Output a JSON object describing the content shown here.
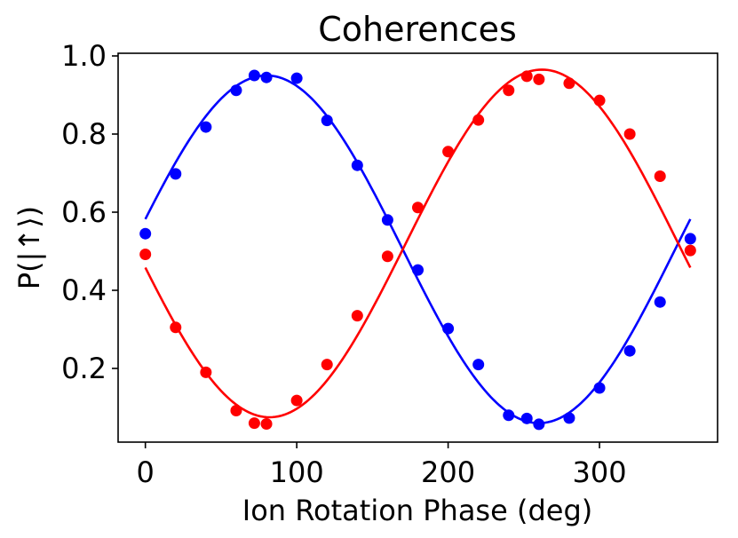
{
  "chart_data": {
    "type": "scatter",
    "title": "Coherences",
    "xlabel": "Ion Rotation Phase (deg)",
    "ylabel": "P(|↑⟩)",
    "xlim": [
      -18,
      378
    ],
    "ylim": [
      0.0,
      1.0
    ],
    "x_ticks": [
      0,
      100,
      200,
      300
    ],
    "x_tick_labels": [
      "0",
      "100",
      "200",
      "300"
    ],
    "y_ticks": [
      0.2,
      0.4,
      0.6,
      0.8,
      1.0
    ],
    "y_tick_labels": [
      "0.2",
      "0.4",
      "0.6",
      "0.8",
      "1.0"
    ],
    "grid": false,
    "series": [
      {
        "name": "blue data",
        "color": "#0000ff",
        "x": [
          0,
          20,
          40,
          60,
          72,
          80,
          100,
          120,
          140,
          160,
          180,
          200,
          220,
          240,
          252,
          260,
          280,
          300,
          320,
          340,
          360
        ],
        "y": [
          0.545,
          0.698,
          0.818,
          0.912,
          0.95,
          0.945,
          0.943,
          0.835,
          0.72,
          0.58,
          0.452,
          0.302,
          0.21,
          0.08,
          0.072,
          0.057,
          0.073,
          0.15,
          0.245,
          0.37,
          0.532
        ]
      },
      {
        "name": "red data",
        "color": "#ff0000",
        "x": [
          0,
          20,
          40,
          60,
          72,
          80,
          100,
          120,
          140,
          160,
          180,
          200,
          220,
          240,
          252,
          260,
          280,
          300,
          320,
          340,
          360
        ],
        "y": [
          0.492,
          0.305,
          0.19,
          0.092,
          0.06,
          0.058,
          0.118,
          0.21,
          0.335,
          0.487,
          0.612,
          0.755,
          0.836,
          0.912,
          0.948,
          0.94,
          0.93,
          0.886,
          0.8,
          0.692,
          0.502
        ]
      }
    ],
    "fits": [
      {
        "name": "blue fit",
        "color": "#0000ff",
        "offset": 0.505,
        "amplitude": 0.445,
        "peak_deg": 80
      },
      {
        "name": "red fit",
        "color": "#ff0000",
        "offset": 0.52,
        "amplitude": 0.445,
        "peak_deg": 262
      }
    ]
  }
}
